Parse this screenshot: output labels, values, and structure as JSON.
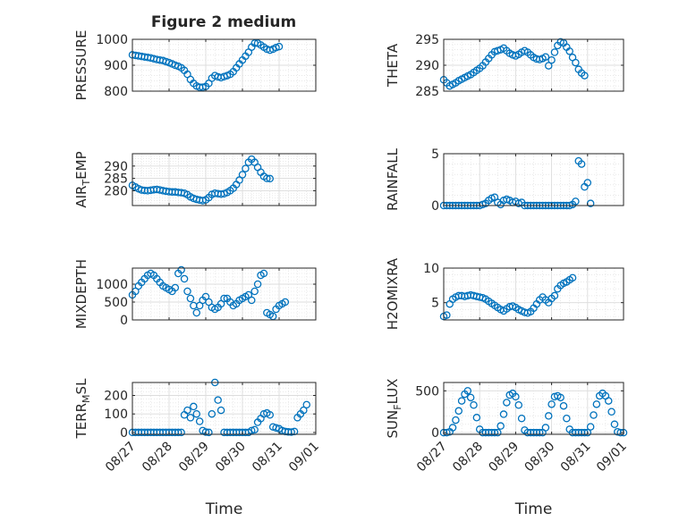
{
  "figure": {
    "title": "Figure 2 medium",
    "marker_color": "#0072BD",
    "axes_color": "#262626",
    "grid_color": "#dcdcdc"
  },
  "chart_data": [
    {
      "id": "pressure",
      "type": "scatter",
      "ylabel": "PRESSURE",
      "title": "Figure 2 medium",
      "xlim": [
        "08/27",
        "09/01"
      ],
      "xticks": [
        "08/27",
        "08/28",
        "08/29",
        "08/30",
        "08/31",
        "09/01"
      ],
      "ylim": [
        800,
        1000
      ],
      "yticks": [
        800,
        900,
        1000
      ],
      "grid": true,
      "marker": "circle",
      "x_start": "08/27 00:00",
      "x_step_hours": 2,
      "y": [
        940,
        938,
        936,
        934,
        932,
        930,
        928,
        925,
        922,
        920,
        918,
        914,
        910,
        905,
        900,
        896,
        890,
        880,
        865,
        845,
        830,
        820,
        815,
        815,
        818,
        830,
        850,
        860,
        855,
        852,
        856,
        860,
        865,
        875,
        890,
        905,
        920,
        935,
        950,
        970,
        985,
        985,
        978,
        970,
        962,
        958,
        962,
        968,
        972
      ]
    },
    {
      "id": "theta",
      "type": "scatter",
      "ylabel": "THETA",
      "xlim": [
        "08/27",
        "09/01"
      ],
      "xticks": [
        "08/27",
        "08/28",
        "08/29",
        "08/30",
        "08/31",
        "09/01"
      ],
      "ylim": [
        285,
        295
      ],
      "yticks": [
        285,
        290,
        295
      ],
      "grid": true,
      "marker": "circle",
      "x_start": "08/27 00:00",
      "x_step_hours": 2,
      "y": [
        287.2,
        286.6,
        286.0,
        286.3,
        286.6,
        287.0,
        287.3,
        287.6,
        287.9,
        288.2,
        288.6,
        289.0,
        289.4,
        289.9,
        290.6,
        291.3,
        292.0,
        292.6,
        292.8,
        293.0,
        293.3,
        292.8,
        292.3,
        292.0,
        291.8,
        292.1,
        292.5,
        292.8,
        292.5,
        292.0,
        291.5,
        291.2,
        291.1,
        291.3,
        291.6,
        289.9,
        291.0,
        292.5,
        293.8,
        294.5,
        294.3,
        293.5,
        292.7,
        291.5,
        290.5,
        289.2,
        288.5,
        288.0
      ]
    },
    {
      "id": "air_temp",
      "type": "scatter",
      "ylabel": "AIR",
      "ylabel_sub": "T",
      "ylabel_suffix": "EMP",
      "xlim": [
        "08/27",
        "09/01"
      ],
      "xticks": [
        "08/27",
        "08/28",
        "08/29",
        "08/30",
        "08/31",
        "09/01"
      ],
      "ylim": [
        274,
        295
      ],
      "yticks": [
        280,
        285,
        290
      ],
      "grid": true,
      "marker": "circle",
      "x_start": "08/27 00:00",
      "x_step_hours": 2,
      "y": [
        282.2,
        281.5,
        280.8,
        280.3,
        280.1,
        280.0,
        280.2,
        280.4,
        280.5,
        280.3,
        280.0,
        279.8,
        279.6,
        279.5,
        279.5,
        279.3,
        279.2,
        279.0,
        278.4,
        277.5,
        276.9,
        276.5,
        276.2,
        276.0,
        276.3,
        277.2,
        278.5,
        279.0,
        278.8,
        278.6,
        278.8,
        279.3,
        280.0,
        281.0,
        282.5,
        284.3,
        286.5,
        289.0,
        291.5,
        292.8,
        291.5,
        289.5,
        287.5,
        285.8,
        285.0,
        284.9
      ]
    },
    {
      "id": "rainfall",
      "type": "scatter",
      "ylabel": "RAINFALL",
      "xlim": [
        "08/27",
        "09/01"
      ],
      "xticks": [
        "08/27",
        "08/28",
        "08/29",
        "08/30",
        "08/31",
        "09/01"
      ],
      "ylim": [
        0,
        5
      ],
      "yticks": [
        0,
        5
      ],
      "grid": true,
      "marker": "circle",
      "x_start": "08/27 00:00",
      "x_step_hours": 2,
      "y": [
        0,
        0,
        0,
        0,
        0,
        0,
        0,
        0,
        0,
        0,
        0,
        0,
        0,
        0.1,
        0.2,
        0.5,
        0.7,
        0.8,
        0.3,
        0.1,
        0.5,
        0.6,
        0.5,
        0.3,
        0.4,
        0.2,
        0.3,
        0,
        0,
        0,
        0,
        0,
        0,
        0,
        0,
        0,
        0,
        0,
        0,
        0,
        0,
        0,
        0,
        0.1,
        0.4,
        4.3,
        4.0,
        1.8,
        2.2,
        0.2
      ]
    },
    {
      "id": "mixdepth",
      "type": "scatter",
      "ylabel": "MIXDEPTH",
      "xlim": [
        "08/27",
        "09/01"
      ],
      "xticks": [
        "08/27",
        "08/28",
        "08/29",
        "08/30",
        "08/31",
        "09/01"
      ],
      "ylim": [
        0,
        1450
      ],
      "yticks": [
        0,
        500,
        1000
      ],
      "grid": true,
      "marker": "circle",
      "x_start": "08/27 00:00",
      "x_step_hours": 2,
      "y": [
        700,
        800,
        950,
        1050,
        1150,
        1250,
        1300,
        1250,
        1150,
        1050,
        950,
        900,
        850,
        800,
        900,
        1300,
        1400,
        1150,
        800,
        600,
        400,
        200,
        400,
        550,
        650,
        500,
        350,
        300,
        350,
        450,
        600,
        600,
        500,
        400,
        450,
        550,
        600,
        650,
        700,
        550,
        800,
        1000,
        1250,
        1300,
        200,
        150,
        100,
        300,
        400,
        450,
        500
      ]
    },
    {
      "id": "h2omixra",
      "type": "scatter",
      "ylabel": "H2OMIXRA",
      "xlim": [
        "08/27",
        "09/01"
      ],
      "xticks": [
        "08/27",
        "08/28",
        "08/29",
        "08/30",
        "08/31",
        "09/01"
      ],
      "ylim": [
        2.5,
        10
      ],
      "yticks": [
        5,
        10
      ],
      "grid": true,
      "marker": "circle",
      "x_start": "08/27 00:00",
      "x_step_hours": 2,
      "y": [
        3.0,
        3.2,
        4.8,
        5.5,
        5.8,
        6.0,
        6.0,
        5.9,
        6.0,
        6.1,
        6.0,
        5.9,
        5.8,
        5.7,
        5.5,
        5.2,
        4.9,
        4.6,
        4.3,
        4.0,
        3.8,
        4.1,
        4.4,
        4.5,
        4.3,
        4.0,
        3.8,
        3.6,
        3.5,
        3.7,
        4.2,
        4.8,
        5.4,
        5.8,
        5.4,
        5.0,
        5.6,
        6.0,
        7.0,
        7.5,
        7.8,
        8.0,
        8.3,
        8.6
      ]
    },
    {
      "id": "terr_msl",
      "type": "scatter",
      "ylabel": "TERR",
      "ylabel_sub": "M",
      "ylabel_suffix": "SL",
      "xlim": [
        "08/27",
        "09/01"
      ],
      "xticks": [
        "08/27",
        "08/28",
        "08/29",
        "08/30",
        "08/31",
        "09/01"
      ],
      "ylim": [
        -10,
        270
      ],
      "yticks": [
        0,
        100,
        200
      ],
      "grid": true,
      "marker": "circle",
      "x_start": "08/27 00:00",
      "x_step_hours": 2,
      "y": [
        0,
        0,
        0,
        0,
        0,
        0,
        0,
        0,
        0,
        0,
        0,
        0,
        0,
        0,
        0,
        0,
        0,
        95,
        120,
        80,
        140,
        100,
        60,
        10,
        2,
        0,
        100,
        270,
        175,
        120,
        0,
        0,
        0,
        0,
        0,
        0,
        0,
        0,
        0,
        10,
        15,
        55,
        75,
        100,
        105,
        95,
        30,
        25,
        20,
        10,
        5,
        3,
        2,
        5,
        80,
        100,
        120,
        150
      ]
    },
    {
      "id": "sun_flux",
      "type": "scatter",
      "ylabel": "SUN",
      "ylabel_sub": "F",
      "ylabel_suffix": "LUX",
      "xlim": [
        "08/27",
        "09/01"
      ],
      "xticks": [
        "08/27",
        "08/28",
        "08/29",
        "08/30",
        "08/31",
        "09/01"
      ],
      "ylim": [
        -20,
        600
      ],
      "yticks": [
        0,
        500
      ],
      "grid": true,
      "marker": "circle",
      "x_start": "08/27 00:00",
      "x_step_hours": 2,
      "y": [
        0,
        0,
        10,
        60,
        150,
        260,
        380,
        460,
        500,
        420,
        330,
        180,
        40,
        0,
        0,
        0,
        0,
        0,
        0,
        80,
        220,
        360,
        450,
        470,
        430,
        330,
        170,
        30,
        0,
        0,
        0,
        0,
        0,
        0,
        60,
        200,
        340,
        430,
        440,
        420,
        320,
        170,
        40,
        0,
        0,
        0,
        0,
        0,
        0,
        70,
        210,
        340,
        440,
        470,
        440,
        380,
        250,
        100,
        10,
        0,
        0,
        0
      ]
    }
  ],
  "panels": {
    "pressure_title": "Figure 2 medium",
    "x_axis_label": "Time",
    "x_tick_labels": [
      "08/27",
      "08/28",
      "08/29",
      "08/30",
      "08/31",
      "09/01"
    ]
  }
}
